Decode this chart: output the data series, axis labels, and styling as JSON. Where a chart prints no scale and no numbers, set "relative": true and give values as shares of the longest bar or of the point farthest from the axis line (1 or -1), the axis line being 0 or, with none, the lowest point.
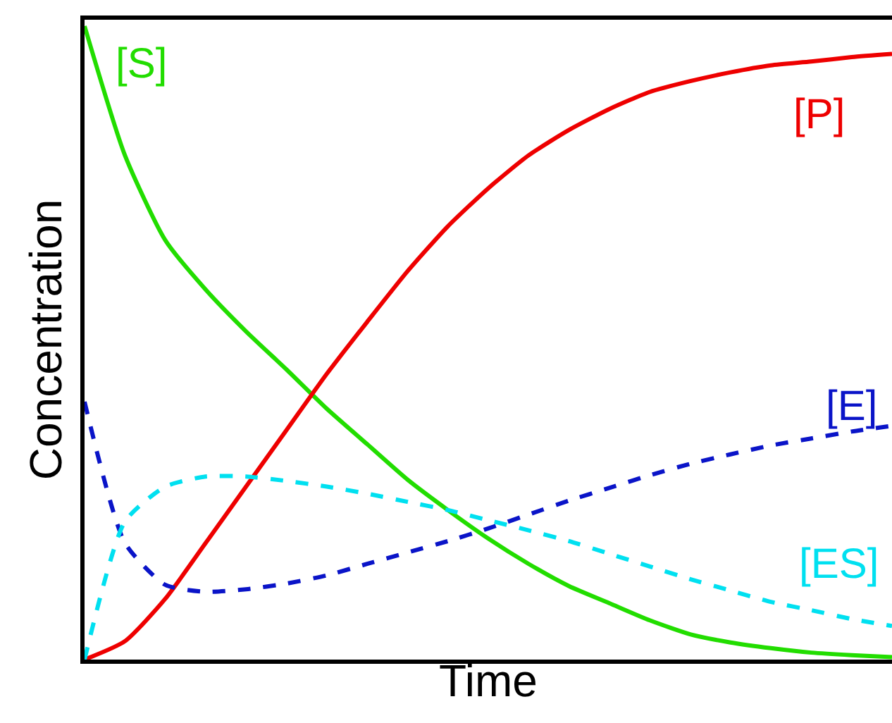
{
  "chart_data": {
    "type": "line",
    "relative": true,
    "xlabel": "Time",
    "ylabel": "Concentration",
    "legend": false,
    "tick_labels": false,
    "categories": [
      null,
      null,
      null,
      null,
      null,
      null,
      null,
      null,
      null,
      null,
      null,
      null,
      null,
      null,
      null,
      null,
      null,
      null,
      null,
      null,
      null
    ],
    "series": [
      {
        "name": "[S]",
        "color": "#22dd00",
        "line_style": "solid",
        "values": [
          1,
          0.796,
          0.662,
          0.584,
          0.518,
          0.458,
          0.396,
          0.34,
          0.284,
          0.236,
          0.191,
          0.151,
          0.116,
          0.089,
          0.062,
          0.04,
          0.027,
          0.018,
          0.011,
          0.007,
          0.004
        ]
      },
      {
        "name": "[P]",
        "color": "#ee0000",
        "line_style": "solid",
        "values": [
          0,
          0.029,
          0.096,
          0.184,
          0.273,
          0.362,
          0.451,
          0.533,
          0.613,
          0.684,
          0.744,
          0.796,
          0.836,
          0.869,
          0.896,
          0.913,
          0.927,
          0.938,
          0.944,
          0.951,
          0.956
        ]
      },
      {
        "name": "[E]",
        "color": "#0a14c8",
        "line_style": "dashed",
        "values": [
          0.407,
          0.184,
          0.118,
          0.107,
          0.111,
          0.12,
          0.133,
          0.151,
          0.169,
          0.187,
          0.207,
          0.229,
          0.251,
          0.271,
          0.291,
          0.309,
          0.324,
          0.338,
          0.349,
          0.36,
          0.369
        ]
      },
      {
        "name": "[ES]",
        "color": "#00e0f0",
        "line_style": "dashed",
        "values": [
          0,
          0.218,
          0.273,
          0.289,
          0.289,
          0.282,
          0.273,
          0.262,
          0.249,
          0.236,
          0.22,
          0.204,
          0.187,
          0.167,
          0.147,
          0.127,
          0.109,
          0.091,
          0.078,
          0.064,
          0.053
        ]
      }
    ]
  }
}
